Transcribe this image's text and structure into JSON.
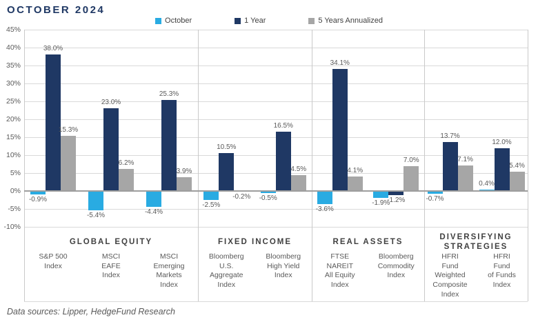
{
  "title": "OCTOBER 2024",
  "footer": "Data sources: Lipper, HedgeFund Research",
  "colors": {
    "title_navy": "#1f3864",
    "october_blue": "#29abe2",
    "one_year_navy": "#1f3864",
    "five_year_gray": "#a6a6a6",
    "gridline": "#d9d9d9",
    "zero_line": "#9d9d9d",
    "label_text": "#595959"
  },
  "chart_data": {
    "type": "bar",
    "title": "OCTOBER 2024",
    "xlabel": "",
    "ylabel": "",
    "ylim": [
      -10,
      45
    ],
    "ytick_step": 5,
    "ytick_labels": [
      "45%",
      "40%",
      "35%",
      "30%",
      "25%",
      "20%",
      "15%",
      "10%",
      "5%",
      "0%",
      "-5%",
      "-10%"
    ],
    "grid": true,
    "legend_position": "top",
    "value_label_format": "0.0%",
    "series_names": [
      "October",
      "1 Year",
      "5 Years Annualized"
    ],
    "series_colors": [
      "#29abe2",
      "#1f3864",
      "#a6a6a6"
    ],
    "groups": [
      {
        "name": "GLOBAL EQUITY",
        "indexes": [
          {
            "label": [
              "S&P 500",
              "Index"
            ],
            "values": [
              -0.9,
              38.0,
              15.3
            ],
            "value_labels": [
              "-0.9%",
              "38.0%",
              "15.3%"
            ]
          },
          {
            "label": [
              "MSCI",
              "EAFE",
              "Index"
            ],
            "values": [
              -5.4,
              23.0,
              6.2
            ],
            "value_labels": [
              "-5.4%",
              "23.0%",
              "6.2%"
            ]
          },
          {
            "label": [
              "MSCI",
              "Emerging",
              "Markets",
              "Index"
            ],
            "values": [
              -4.4,
              25.3,
              3.9
            ],
            "value_labels": [
              "-4.4%",
              "25.3%",
              "3.9%"
            ]
          }
        ]
      },
      {
        "name": "FIXED INCOME",
        "indexes": [
          {
            "label": [
              "Bloomberg",
              "U.S.",
              "Aggregate",
              "Index"
            ],
            "values": [
              -2.5,
              10.5,
              -0.2
            ],
            "value_labels": [
              "-2.5%",
              "10.5%",
              "-0.2%"
            ]
          },
          {
            "label": [
              "Bloomberg",
              "High Yield",
              "Index"
            ],
            "values": [
              -0.5,
              16.5,
              4.5
            ],
            "value_labels": [
              "-0.5%",
              "16.5%",
              "4.5%"
            ]
          }
        ]
      },
      {
        "name": "REAL ASSETS",
        "indexes": [
          {
            "label": [
              "FTSE",
              "NAREIT",
              "All Equity",
              "Index"
            ],
            "values": [
              -3.6,
              34.1,
              4.1
            ],
            "value_labels": [
              "-3.6%",
              "34.1%",
              "4.1%"
            ]
          },
          {
            "label": [
              "Bloomberg",
              "Commodity",
              "Index"
            ],
            "values": [
              -1.9,
              -1.2,
              7.0
            ],
            "value_labels": [
              "-1.9%",
              "-1.2%",
              "7.0%"
            ]
          }
        ]
      },
      {
        "name": [
          "DIVERSIFYING",
          "STRATEGIES"
        ],
        "indexes": [
          {
            "label": [
              "HFRI",
              "Fund",
              "Weighted",
              "Composite",
              "Index"
            ],
            "values": [
              -0.7,
              13.7,
              7.1
            ],
            "value_labels": [
              "-0.7%",
              "13.7%",
              "7.1%"
            ]
          },
          {
            "label": [
              "HFRI",
              "Fund",
              "of Funds",
              "Index"
            ],
            "values": [
              0.4,
              12.0,
              5.4
            ],
            "value_labels": [
              "0.4%",
              "12.0%",
              "5.4%"
            ]
          }
        ]
      }
    ]
  }
}
